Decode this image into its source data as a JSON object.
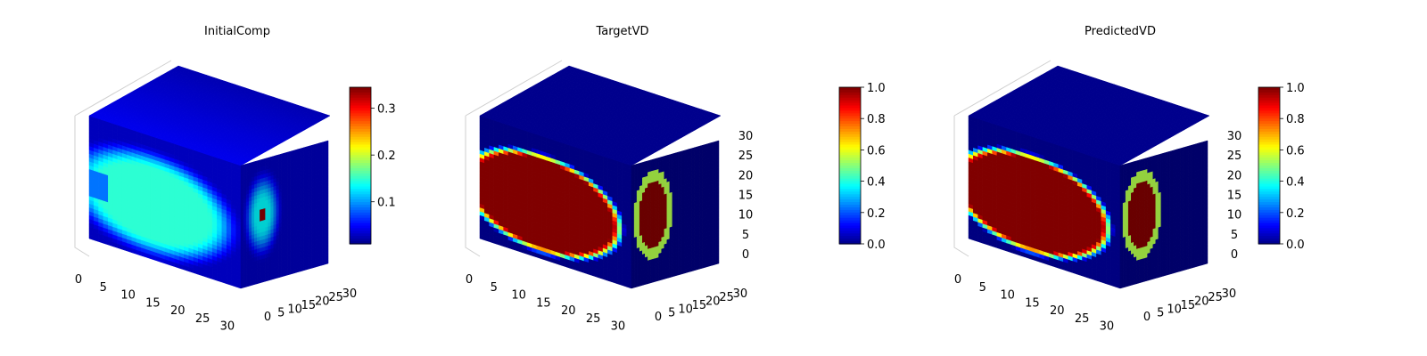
{
  "chart_data": [
    {
      "type": "heatmap",
      "title": "InitialComp",
      "volume_shape": [
        32,
        32,
        32
      ],
      "x_ticks": [
        "0",
        "5",
        "10",
        "15",
        "20",
        "25",
        "30"
      ],
      "y_ticks": [
        "0",
        "5",
        "10",
        "15",
        "20",
        "25",
        "30"
      ],
      "z_ticks": [],
      "colormap": "jet",
      "colorbar": {
        "range": [
          0.01,
          0.345
        ],
        "ticks": [
          "0.1",
          "0.2",
          "0.3"
        ],
        "tick_values": [
          0.1,
          0.2,
          0.3
        ]
      },
      "field": {
        "blob_value": 0.15,
        "background_value": 0.03,
        "hotspot_value": 0.34,
        "pattern": "smooth"
      }
    },
    {
      "type": "heatmap",
      "title": "TargetVD",
      "volume_shape": [
        32,
        32,
        32
      ],
      "x_ticks": [
        "0",
        "5",
        "10",
        "15",
        "20",
        "25",
        "30"
      ],
      "y_ticks": [
        "0",
        "5",
        "10",
        "15",
        "20",
        "25",
        "30"
      ],
      "z_ticks": [
        "0",
        "5",
        "10",
        "15",
        "20",
        "25",
        "30"
      ],
      "colormap": "jet",
      "colorbar": {
        "range": [
          0.0,
          1.0
        ],
        "ticks": [
          "0.0",
          "0.2",
          "0.4",
          "0.6",
          "0.8",
          "1.0"
        ],
        "tick_values": [
          0.0,
          0.2,
          0.4,
          0.6,
          0.8,
          1.0
        ]
      },
      "field": {
        "blob_value": 1.0,
        "background_value": 0.0,
        "pattern": "sharp"
      }
    },
    {
      "type": "heatmap",
      "title": "PredictedVD",
      "volume_shape": [
        32,
        32,
        32
      ],
      "x_ticks": [
        "0",
        "5",
        "10",
        "15",
        "20",
        "25",
        "30"
      ],
      "y_ticks": [
        "0",
        "5",
        "10",
        "15",
        "20",
        "25",
        "30"
      ],
      "z_ticks": [
        "0",
        "5",
        "10",
        "15",
        "20",
        "25",
        "30"
      ],
      "colormap": "jet",
      "colorbar": {
        "range": [
          0.0,
          1.0
        ],
        "ticks": [
          "0.0",
          "0.2",
          "0.4",
          "0.6",
          "0.8",
          "1.0"
        ],
        "tick_values": [
          0.0,
          0.2,
          0.4,
          0.6,
          0.8,
          1.0
        ]
      },
      "field": {
        "blob_value": 1.0,
        "background_value": 0.0,
        "pattern": "sharp"
      }
    }
  ]
}
